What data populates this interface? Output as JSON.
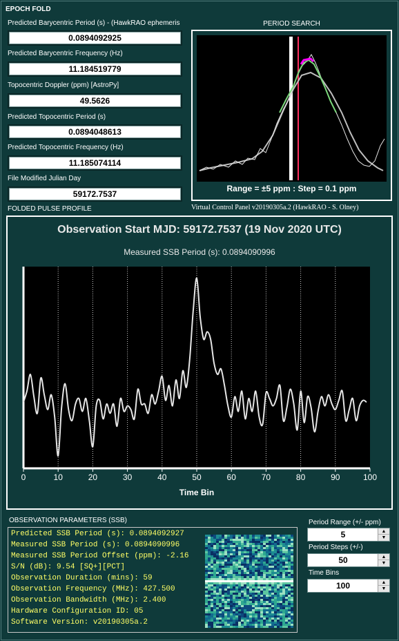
{
  "epoch_fold": {
    "title": "EPOCH FOLD",
    "fields": [
      {
        "label": "Predicted Barycentric Period (s) - (HawkRAO ephemeris",
        "value": "0.0894092925"
      },
      {
        "label": "Predicted Barycentric Frequency (Hz)",
        "value": "11.184519779"
      },
      {
        "label": "Topocentric Doppler (ppm) [AstroPy]",
        "value": "49.5626"
      },
      {
        "label": "Predicted Topocentric Period (s)",
        "value": "0.0894048613"
      },
      {
        "label": "Predicted Topocentric Frequency (Hz)",
        "value": "11.185074114"
      },
      {
        "label": "File Modified Julian Day",
        "value": "59172.7537"
      }
    ]
  },
  "period_search": {
    "title": "PERIOD SEARCH",
    "range_text": "Range = ±5 ppm : Step = 0.1 ppm"
  },
  "version_label": "Virtual Control Panel v20190305a.2 (HawkRAO - S. Olney)",
  "folded_pulse": {
    "title": "FOLDED PULSE PROFILE",
    "obs_start": "Observation Start MJD: 59172.7537   (19 Nov 2020  UTC)",
    "ssb_period": "Measured SSB Period (s):  0.0894090996"
  },
  "chart_data": {
    "type": "line",
    "xlabel": "Time Bin",
    "ylabel": "",
    "xlim": [
      0,
      100
    ],
    "ylim": [
      0,
      1
    ],
    "xticks": [
      "0",
      "10",
      "20",
      "30",
      "40",
      "50",
      "60",
      "70",
      "80",
      "90",
      "100"
    ],
    "grid": true,
    "series": [
      {
        "x": [
          0,
          1,
          2,
          3,
          4,
          5,
          6,
          7,
          8,
          9,
          10,
          11,
          12,
          13,
          14,
          15,
          16,
          17,
          18,
          19,
          20,
          21,
          22,
          23,
          24,
          25,
          26,
          27,
          28,
          29,
          30,
          31,
          32,
          33,
          34,
          35,
          36,
          37,
          38,
          39,
          40,
          41,
          42,
          43,
          44,
          45,
          46,
          47,
          48,
          49,
          50,
          51,
          52,
          53,
          54,
          55,
          56,
          57,
          58,
          59,
          60,
          61,
          62,
          63,
          64,
          65,
          66,
          67,
          68,
          69,
          70,
          71,
          72,
          73,
          74,
          75,
          76,
          77,
          78,
          79,
          80,
          81,
          82,
          83,
          84,
          85,
          86,
          87,
          88,
          89,
          90,
          91,
          92,
          93,
          94,
          95,
          96,
          97,
          98,
          99
        ],
        "values": [
          0.32,
          0.38,
          0.47,
          0.35,
          0.26,
          0.45,
          0.36,
          0.28,
          0.36,
          0.24,
          0.03,
          0.29,
          0.42,
          0.28,
          0.22,
          0.31,
          0.34,
          0.27,
          0.34,
          0.22,
          0.08,
          0.3,
          0.33,
          0.23,
          0.31,
          0.26,
          0.31,
          0.19,
          0.34,
          0.27,
          0.3,
          0.28,
          0.23,
          0.39,
          0.31,
          0.31,
          0.26,
          0.36,
          0.31,
          0.38,
          0.46,
          0.33,
          0.41,
          0.3,
          0.44,
          0.34,
          0.49,
          0.4,
          0.56,
          0.82,
          0.99,
          0.78,
          0.66,
          0.7,
          0.66,
          0.53,
          0.47,
          0.5,
          0.41,
          0.3,
          0.24,
          0.35,
          0.27,
          0.38,
          0.23,
          0.34,
          0.27,
          0.38,
          0.24,
          0.2,
          0.37,
          0.34,
          0.3,
          0.34,
          0.41,
          0.22,
          0.29,
          0.39,
          0.31,
          0.17,
          0.38,
          0.21,
          0.35,
          0.29,
          0.16,
          0.27,
          0.35,
          0.3,
          0.36,
          0.31,
          0.28,
          0.33,
          0.38,
          0.22,
          0.28,
          0.34,
          0.22,
          0.3,
          0.33,
          0.32
        ]
      }
    ]
  },
  "obs_params": {
    "title": "OBSERVATION PARAMETERS (SSB)",
    "lines": [
      "Predicted SSB Period (s): 0.0894092927",
      "Measured SSB Period (s):  0.0894090996",
      "Measured SSB Period Offset (ppm): -2.16",
      "S/N (dB): 9.54  [SQ+][PCT]",
      "Observation Duration (mins): 59",
      "Observation Frequency (MHz): 427.500",
      "Observation Bandwidth (MHz): 2.400",
      "Hardware Configuration ID: 05",
      "Software Version: v20190305a.2"
    ]
  },
  "controls": {
    "period_range_label": "Period Range (+/- ppm)",
    "period_range_value": "5",
    "period_steps_label": "Period Steps (+/-)",
    "period_steps_value": "50",
    "time_bins_label": "Time Bins",
    "time_bins_value": "100"
  },
  "icons": {
    "spin_up": "spin-up-arrow-icon",
    "spin_down": "spin-down-arrow-icon"
  },
  "colors": {
    "background": "#0f3a3a",
    "trace": "#e6e6e6",
    "param_text": "#ffff66",
    "ps_peak": "#ff00ff",
    "ps_fit": "#7cd87c",
    "ps_marker": "#ff3060"
  }
}
